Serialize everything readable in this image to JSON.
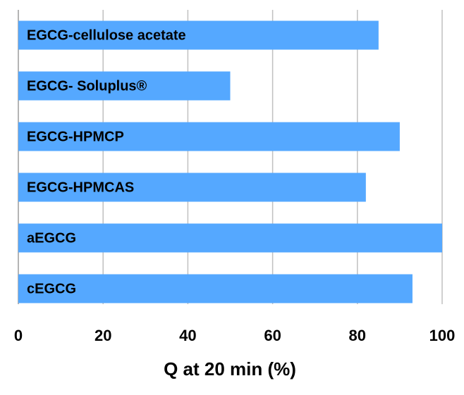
{
  "chart_data": {
    "type": "barh",
    "x_label": "Q at 20 min (%)",
    "categories": [
      "EGCG-cellulose acetate",
      "EGCG- Soluplus®",
      "EGCG-HPMCP",
      "EGCG-HPMCAS",
      "aEGCG",
      "cEGCG"
    ],
    "values": [
      85,
      50,
      90,
      82,
      100,
      93
    ],
    "color": "#55a8ff",
    "xlim": [
      0,
      100
    ],
    "xticks": [
      0,
      20,
      40,
      60,
      80,
      100
    ],
    "grid": true
  }
}
